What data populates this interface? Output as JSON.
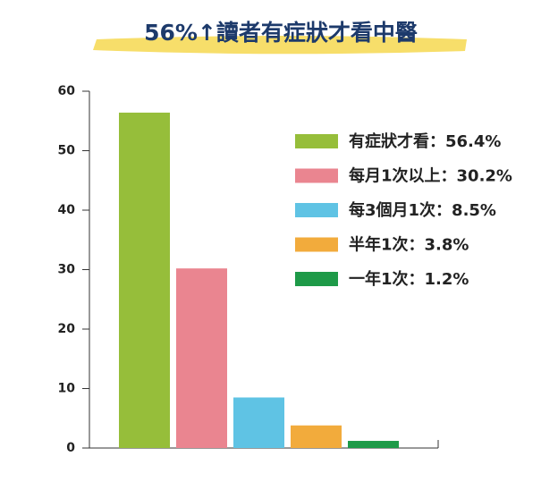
{
  "chart_data": {
    "type": "bar",
    "title": "56%↑讀者有症狀才看中醫",
    "categories": [
      "有症狀才看：56.4%",
      "每月1次以上：30.2%",
      "每3個月1次：8.5%",
      "半年1次：3.8%",
      "一年1次：1.2%"
    ],
    "values": [
      56.4,
      30.2,
      8.5,
      3.8,
      1.2
    ],
    "colors": [
      "#96be3a",
      "#ea8590",
      "#5fc3e4",
      "#f2ab3c",
      "#1e9a48"
    ],
    "ylim": [
      0,
      60
    ],
    "yticks": [
      0,
      10,
      20,
      30,
      40,
      50,
      60
    ]
  }
}
